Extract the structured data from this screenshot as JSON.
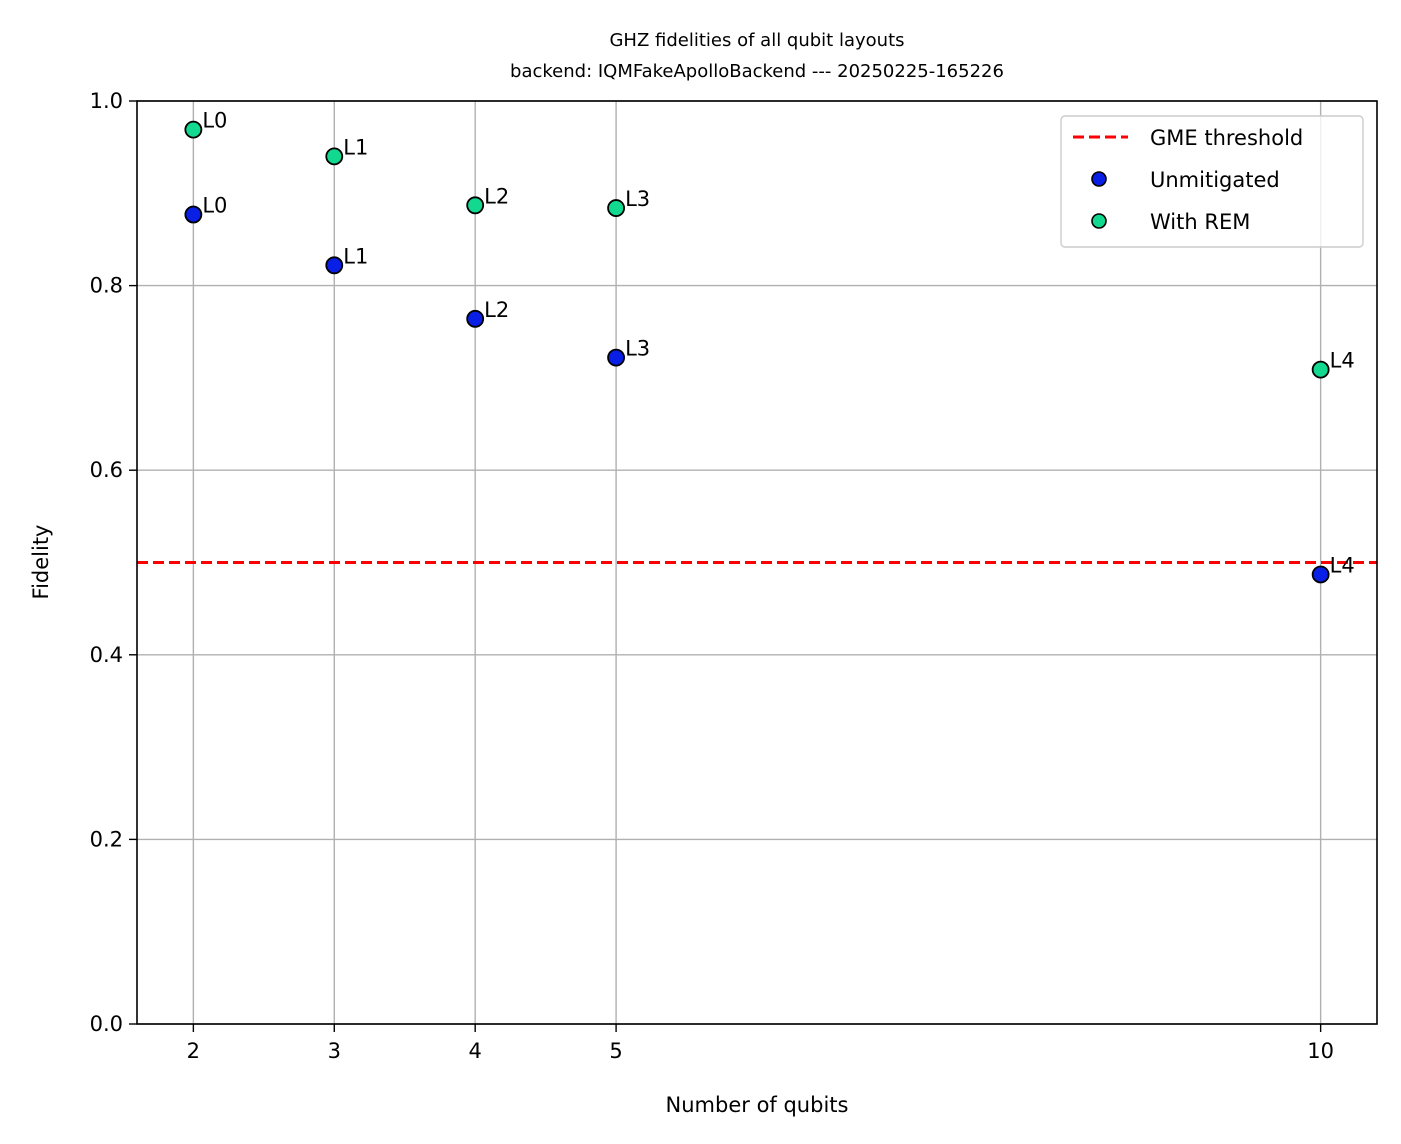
{
  "chart_data": {
    "type": "scatter",
    "title": "GHZ fidelities of all qubit layouts",
    "subtitle": "backend: IQMFakeApolloBackend --- 20250225-165226",
    "xlabel": "Number of qubits",
    "ylabel": "Fidelity",
    "xlim": [
      1.6,
      10.4
    ],
    "ylim": [
      0.0,
      1.0
    ],
    "xticks": [
      2,
      3,
      4,
      5,
      10
    ],
    "xtick_labels": [
      "2",
      "3",
      "4",
      "5",
      "10"
    ],
    "yticks": [
      0.0,
      0.2,
      0.4,
      0.6,
      0.8,
      1.0
    ],
    "ytick_labels": [
      "0.0",
      "0.2",
      "0.4",
      "0.6",
      "0.8",
      "1.0"
    ],
    "grid": true,
    "legend_position": "top-right",
    "threshold": {
      "name": "GME threshold",
      "y": 0.5,
      "color": "#ff0000",
      "style": "dashed"
    },
    "series": [
      {
        "name": "Unmitigated",
        "color": "#0a1fe6",
        "points": [
          {
            "x": 2,
            "y": 0.877,
            "label": "L0"
          },
          {
            "x": 3,
            "y": 0.822,
            "label": "L1"
          },
          {
            "x": 4,
            "y": 0.764,
            "label": "L2"
          },
          {
            "x": 5,
            "y": 0.722,
            "label": "L3"
          },
          {
            "x": 10,
            "y": 0.487,
            "label": "L4"
          }
        ]
      },
      {
        "name": "With REM",
        "color": "#12d890",
        "points": [
          {
            "x": 2,
            "y": 0.969,
            "label": "L0"
          },
          {
            "x": 3,
            "y": 0.94,
            "label": "L1"
          },
          {
            "x": 4,
            "y": 0.887,
            "label": "L2"
          },
          {
            "x": 5,
            "y": 0.884,
            "label": "L3"
          },
          {
            "x": 10,
            "y": 0.709,
            "label": "L4"
          }
        ]
      }
    ]
  }
}
